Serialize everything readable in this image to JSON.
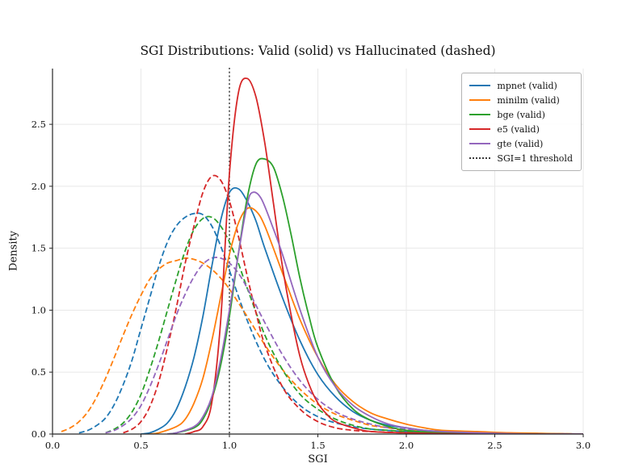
{
  "chart_data": {
    "type": "line",
    "title": "SGI Distributions: Valid (solid) vs Hallucinated (dashed)",
    "xlabel": "SGI",
    "ylabel": "Density",
    "xlim": [
      0.0,
      3.0
    ],
    "ylim": [
      0.0,
      2.95
    ],
    "grid": true,
    "legend_position": "upper right",
    "x_tick_labels": [
      "0.0",
      "0.5",
      "1.0",
      "1.5",
      "2.0",
      "2.5",
      "3.0"
    ],
    "y_tick_labels": [
      "0.0",
      "0.5",
      "1.0",
      "1.5",
      "2.0",
      "2.5"
    ],
    "colors": {
      "grid": "#e8e8e8",
      "spine": "#262626",
      "threshold": "#3a3a3a",
      "background": "#ffffff"
    },
    "threshold": {
      "x": 1.0,
      "label": "SGI=1 threshold",
      "style": "dotted",
      "color": "#3a3a3a"
    },
    "legend": [
      {
        "label": "mpnet (valid)",
        "color": "#1f77b4",
        "style": "solid"
      },
      {
        "label": "minilm (valid)",
        "color": "#ff7f0e",
        "style": "solid"
      },
      {
        "label": "bge (valid)",
        "color": "#2ca02c",
        "style": "solid"
      },
      {
        "label": "e5 (valid)",
        "color": "#d62728",
        "style": "solid"
      },
      {
        "label": "gte (valid)",
        "color": "#9467bd",
        "style": "solid"
      },
      {
        "label": "SGI=1 threshold",
        "color": "#3a3a3a",
        "style": "dotted"
      }
    ],
    "series": [
      {
        "id": "mpnet-hallucinated",
        "name": "mpnet (hallucinated)",
        "color": "#1f77b4",
        "style": "dashed",
        "points": [
          [
            0.15,
            0.01
          ],
          [
            0.2,
            0.03
          ],
          [
            0.25,
            0.07
          ],
          [
            0.3,
            0.13
          ],
          [
            0.35,
            0.24
          ],
          [
            0.4,
            0.4
          ],
          [
            0.45,
            0.6
          ],
          [
            0.5,
            0.85
          ],
          [
            0.55,
            1.1
          ],
          [
            0.6,
            1.35
          ],
          [
            0.65,
            1.55
          ],
          [
            0.7,
            1.68
          ],
          [
            0.75,
            1.75
          ],
          [
            0.8,
            1.78
          ],
          [
            0.85,
            1.77
          ],
          [
            0.9,
            1.68
          ],
          [
            0.95,
            1.52
          ],
          [
            1.0,
            1.32
          ],
          [
            1.1,
            0.92
          ],
          [
            1.2,
            0.6
          ],
          [
            1.3,
            0.38
          ],
          [
            1.4,
            0.23
          ],
          [
            1.5,
            0.14
          ],
          [
            1.6,
            0.09
          ],
          [
            1.7,
            0.06
          ],
          [
            1.8,
            0.04
          ],
          [
            2.0,
            0.02
          ],
          [
            2.2,
            0.01
          ],
          [
            2.6,
            0.0
          ],
          [
            3.0,
            0.0
          ]
        ]
      },
      {
        "id": "minilm-hallucinated",
        "name": "minilm (hallucinated)",
        "color": "#ff7f0e",
        "style": "dashed",
        "points": [
          [
            0.05,
            0.02
          ],
          [
            0.1,
            0.05
          ],
          [
            0.15,
            0.1
          ],
          [
            0.2,
            0.18
          ],
          [
            0.25,
            0.3
          ],
          [
            0.3,
            0.45
          ],
          [
            0.35,
            0.62
          ],
          [
            0.4,
            0.8
          ],
          [
            0.45,
            0.97
          ],
          [
            0.5,
            1.12
          ],
          [
            0.55,
            1.25
          ],
          [
            0.6,
            1.33
          ],
          [
            0.65,
            1.38
          ],
          [
            0.7,
            1.4
          ],
          [
            0.75,
            1.42
          ],
          [
            0.8,
            1.41
          ],
          [
            0.85,
            1.38
          ],
          [
            0.9,
            1.33
          ],
          [
            0.95,
            1.26
          ],
          [
            1.0,
            1.17
          ],
          [
            1.1,
            0.95
          ],
          [
            1.2,
            0.72
          ],
          [
            1.3,
            0.52
          ],
          [
            1.4,
            0.36
          ],
          [
            1.5,
            0.24
          ],
          [
            1.6,
            0.16
          ],
          [
            1.7,
            0.11
          ],
          [
            1.8,
            0.07
          ],
          [
            1.9,
            0.05
          ],
          [
            2.0,
            0.03
          ],
          [
            2.2,
            0.02
          ],
          [
            2.5,
            0.01
          ],
          [
            3.0,
            0.0
          ]
        ]
      },
      {
        "id": "bge-hallucinated",
        "name": "bge (hallucinated)",
        "color": "#2ca02c",
        "style": "dashed",
        "points": [
          [
            0.3,
            0.01
          ],
          [
            0.35,
            0.04
          ],
          [
            0.4,
            0.09
          ],
          [
            0.45,
            0.18
          ],
          [
            0.5,
            0.32
          ],
          [
            0.55,
            0.52
          ],
          [
            0.6,
            0.75
          ],
          [
            0.65,
            1.0
          ],
          [
            0.7,
            1.25
          ],
          [
            0.75,
            1.48
          ],
          [
            0.8,
            1.65
          ],
          [
            0.85,
            1.74
          ],
          [
            0.9,
            1.75
          ],
          [
            0.95,
            1.68
          ],
          [
            1.0,
            1.55
          ],
          [
            1.05,
            1.38
          ],
          [
            1.1,
            1.18
          ],
          [
            1.2,
            0.8
          ],
          [
            1.3,
            0.52
          ],
          [
            1.4,
            0.32
          ],
          [
            1.5,
            0.2
          ],
          [
            1.6,
            0.12
          ],
          [
            1.7,
            0.07
          ],
          [
            1.8,
            0.04
          ],
          [
            1.9,
            0.03
          ],
          [
            2.0,
            0.02
          ],
          [
            2.2,
            0.01
          ],
          [
            2.6,
            0.0
          ],
          [
            3.0,
            0.0
          ]
        ]
      },
      {
        "id": "e5-hallucinated",
        "name": "e5 (hallucinated)",
        "color": "#d62728",
        "style": "dashed",
        "points": [
          [
            0.4,
            0.01
          ],
          [
            0.45,
            0.04
          ],
          [
            0.5,
            0.1
          ],
          [
            0.55,
            0.22
          ],
          [
            0.6,
            0.42
          ],
          [
            0.65,
            0.7
          ],
          [
            0.7,
            1.02
          ],
          [
            0.75,
            1.38
          ],
          [
            0.8,
            1.68
          ],
          [
            0.85,
            1.95
          ],
          [
            0.9,
            2.08
          ],
          [
            0.95,
            2.05
          ],
          [
            1.0,
            1.88
          ],
          [
            1.05,
            1.6
          ],
          [
            1.1,
            1.28
          ],
          [
            1.15,
            0.98
          ],
          [
            1.2,
            0.72
          ],
          [
            1.3,
            0.38
          ],
          [
            1.4,
            0.2
          ],
          [
            1.5,
            0.1
          ],
          [
            1.6,
            0.05
          ],
          [
            1.7,
            0.03
          ],
          [
            1.8,
            0.02
          ],
          [
            2.0,
            0.01
          ],
          [
            2.4,
            0.0
          ],
          [
            3.0,
            0.0
          ]
        ]
      },
      {
        "id": "gte-hallucinated",
        "name": "gte (hallucinated)",
        "color": "#9467bd",
        "style": "dashed",
        "points": [
          [
            0.3,
            0.01
          ],
          [
            0.35,
            0.03
          ],
          [
            0.4,
            0.07
          ],
          [
            0.45,
            0.13
          ],
          [
            0.5,
            0.23
          ],
          [
            0.55,
            0.38
          ],
          [
            0.6,
            0.56
          ],
          [
            0.65,
            0.76
          ],
          [
            0.7,
            0.96
          ],
          [
            0.75,
            1.13
          ],
          [
            0.8,
            1.27
          ],
          [
            0.85,
            1.37
          ],
          [
            0.9,
            1.42
          ],
          [
            0.95,
            1.42
          ],
          [
            1.0,
            1.38
          ],
          [
            1.05,
            1.3
          ],
          [
            1.1,
            1.18
          ],
          [
            1.2,
            0.9
          ],
          [
            1.3,
            0.64
          ],
          [
            1.4,
            0.43
          ],
          [
            1.5,
            0.28
          ],
          [
            1.6,
            0.18
          ],
          [
            1.7,
            0.12
          ],
          [
            1.8,
            0.08
          ],
          [
            1.9,
            0.05
          ],
          [
            2.0,
            0.04
          ],
          [
            2.2,
            0.02
          ],
          [
            2.5,
            0.01
          ],
          [
            3.0,
            0.0
          ]
        ]
      },
      {
        "id": "mpnet-valid",
        "name": "mpnet (valid)",
        "color": "#1f77b4",
        "style": "solid",
        "points": [
          [
            0.5,
            0.0
          ],
          [
            0.55,
            0.01
          ],
          [
            0.6,
            0.04
          ],
          [
            0.65,
            0.09
          ],
          [
            0.7,
            0.2
          ],
          [
            0.75,
            0.38
          ],
          [
            0.8,
            0.62
          ],
          [
            0.85,
            0.95
          ],
          [
            0.9,
            1.35
          ],
          [
            0.95,
            1.72
          ],
          [
            1.0,
            1.95
          ],
          [
            1.05,
            1.98
          ],
          [
            1.1,
            1.88
          ],
          [
            1.15,
            1.72
          ],
          [
            1.2,
            1.5
          ],
          [
            1.3,
            1.1
          ],
          [
            1.4,
            0.75
          ],
          [
            1.5,
            0.48
          ],
          [
            1.6,
            0.3
          ],
          [
            1.7,
            0.18
          ],
          [
            1.8,
            0.11
          ],
          [
            1.9,
            0.07
          ],
          [
            2.0,
            0.05
          ],
          [
            2.1,
            0.03
          ],
          [
            2.2,
            0.02
          ],
          [
            2.4,
            0.01
          ],
          [
            2.7,
            0.0
          ],
          [
            3.0,
            0.0
          ]
        ]
      },
      {
        "id": "minilm-valid",
        "name": "minilm (valid)",
        "color": "#ff7f0e",
        "style": "solid",
        "points": [
          [
            0.55,
            0.0
          ],
          [
            0.6,
            0.01
          ],
          [
            0.7,
            0.06
          ],
          [
            0.75,
            0.12
          ],
          [
            0.8,
            0.25
          ],
          [
            0.85,
            0.45
          ],
          [
            0.9,
            0.75
          ],
          [
            0.95,
            1.1
          ],
          [
            1.0,
            1.45
          ],
          [
            1.05,
            1.7
          ],
          [
            1.1,
            1.82
          ],
          [
            1.15,
            1.8
          ],
          [
            1.2,
            1.68
          ],
          [
            1.3,
            1.3
          ],
          [
            1.4,
            0.92
          ],
          [
            1.5,
            0.62
          ],
          [
            1.6,
            0.4
          ],
          [
            1.7,
            0.26
          ],
          [
            1.8,
            0.17
          ],
          [
            1.9,
            0.12
          ],
          [
            2.0,
            0.08
          ],
          [
            2.1,
            0.05
          ],
          [
            2.2,
            0.03
          ],
          [
            2.4,
            0.02
          ],
          [
            2.6,
            0.01
          ],
          [
            3.0,
            0.0
          ]
        ]
      },
      {
        "id": "bge-valid",
        "name": "bge (valid)",
        "color": "#2ca02c",
        "style": "solid",
        "points": [
          [
            0.65,
            0.0
          ],
          [
            0.7,
            0.01
          ],
          [
            0.8,
            0.05
          ],
          [
            0.85,
            0.12
          ],
          [
            0.9,
            0.28
          ],
          [
            0.95,
            0.55
          ],
          [
            1.0,
            0.95
          ],
          [
            1.05,
            1.45
          ],
          [
            1.1,
            1.9
          ],
          [
            1.15,
            2.18
          ],
          [
            1.2,
            2.22
          ],
          [
            1.25,
            2.15
          ],
          [
            1.3,
            1.92
          ],
          [
            1.35,
            1.6
          ],
          [
            1.4,
            1.25
          ],
          [
            1.45,
            0.95
          ],
          [
            1.5,
            0.7
          ],
          [
            1.6,
            0.38
          ],
          [
            1.7,
            0.2
          ],
          [
            1.8,
            0.11
          ],
          [
            1.9,
            0.06
          ],
          [
            2.0,
            0.03
          ],
          [
            2.2,
            0.01
          ],
          [
            2.6,
            0.0
          ],
          [
            3.0,
            0.0
          ]
        ]
      },
      {
        "id": "e5-valid",
        "name": "e5 (valid)",
        "color": "#d62728",
        "style": "solid",
        "points": [
          [
            0.75,
            0.0
          ],
          [
            0.8,
            0.02
          ],
          [
            0.85,
            0.06
          ],
          [
            0.9,
            0.25
          ],
          [
            0.95,
            0.9
          ],
          [
            1.0,
            2.1
          ],
          [
            1.05,
            2.75
          ],
          [
            1.1,
            2.87
          ],
          [
            1.15,
            2.72
          ],
          [
            1.2,
            2.35
          ],
          [
            1.25,
            1.85
          ],
          [
            1.3,
            1.35
          ],
          [
            1.35,
            0.95
          ],
          [
            1.4,
            0.62
          ],
          [
            1.45,
            0.4
          ],
          [
            1.5,
            0.25
          ],
          [
            1.55,
            0.16
          ],
          [
            1.6,
            0.1
          ],
          [
            1.7,
            0.05
          ],
          [
            1.8,
            0.02
          ],
          [
            2.0,
            0.01
          ],
          [
            2.4,
            0.0
          ],
          [
            3.0,
            0.0
          ]
        ]
      },
      {
        "id": "gte-valid",
        "name": "gte (valid)",
        "color": "#9467bd",
        "style": "solid",
        "points": [
          [
            0.65,
            0.0
          ],
          [
            0.7,
            0.01
          ],
          [
            0.8,
            0.06
          ],
          [
            0.85,
            0.14
          ],
          [
            0.9,
            0.3
          ],
          [
            0.95,
            0.6
          ],
          [
            1.0,
            1.0
          ],
          [
            1.05,
            1.45
          ],
          [
            1.1,
            1.85
          ],
          [
            1.13,
            1.95
          ],
          [
            1.18,
            1.9
          ],
          [
            1.25,
            1.65
          ],
          [
            1.3,
            1.45
          ],
          [
            1.4,
            1.0
          ],
          [
            1.5,
            0.62
          ],
          [
            1.6,
            0.38
          ],
          [
            1.7,
            0.23
          ],
          [
            1.8,
            0.14
          ],
          [
            1.9,
            0.08
          ],
          [
            2.0,
            0.05
          ],
          [
            2.1,
            0.03
          ],
          [
            2.2,
            0.02
          ],
          [
            2.4,
            0.01
          ],
          [
            2.7,
            0.0
          ],
          [
            3.0,
            0.0
          ]
        ]
      }
    ]
  }
}
